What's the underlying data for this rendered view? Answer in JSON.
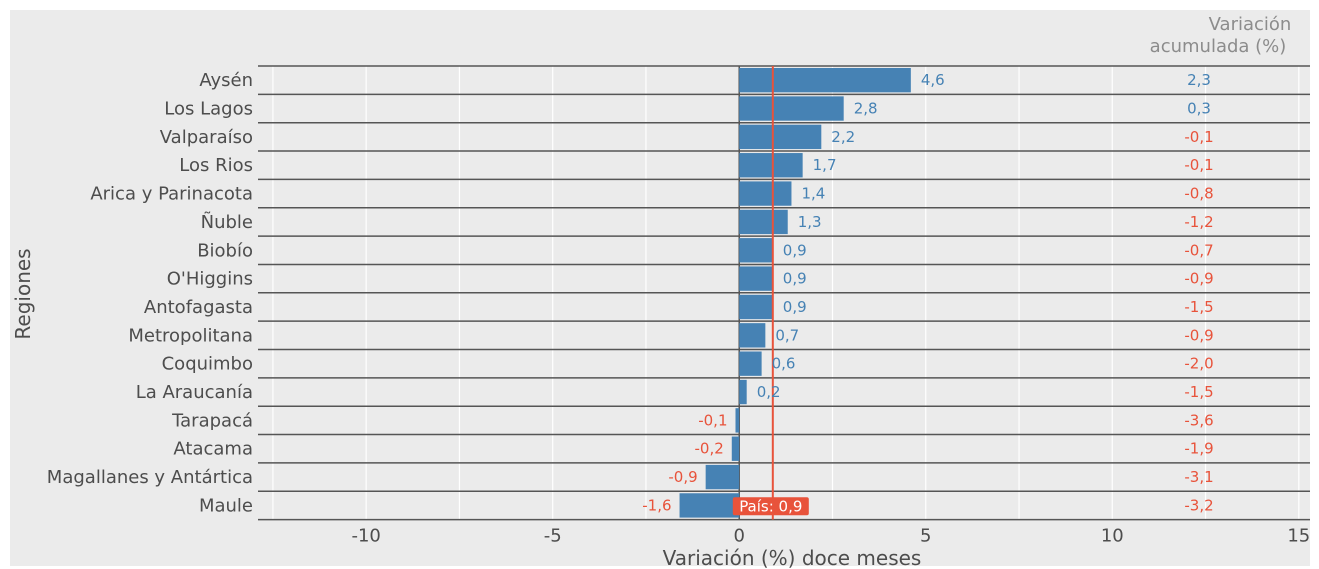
{
  "chart_data": {
    "type": "bar",
    "orientation": "horizontal",
    "xlabel": "Variación (%) doce meses",
    "ylabel": "Regiones",
    "xlim": [
      -12.9,
      15.3
    ],
    "xticks": [
      -10,
      -5,
      0,
      5,
      10,
      15
    ],
    "xtick_labels": [
      "-10",
      "-5",
      "0",
      "5",
      "10",
      "15"
    ],
    "grid": true,
    "categories": [
      "Aysén",
      "Los Lagos",
      "Valparaíso",
      "Los Rios",
      "Arica y Parinacota",
      "Ñuble",
      "Biobío",
      "O'Higgins",
      "Antofagasta",
      "Metropolitana",
      "Coquimbo",
      "La Araucanía",
      "Tarapacá",
      "Atacama",
      "Magallanes y Antártica",
      "Maule"
    ],
    "values": [
      4.6,
      2.8,
      2.2,
      1.7,
      1.4,
      1.3,
      0.9,
      0.9,
      0.9,
      0.7,
      0.6,
      0.2,
      -0.1,
      -0.2,
      -0.9,
      -1.6
    ],
    "value_labels": [
      "4,6",
      "2,8",
      "2,2",
      "1,7",
      "1,4",
      "1,3",
      "0,9",
      "0,9",
      "0,9",
      "0,7",
      "0,6",
      "0,2",
      "-0,1",
      "-0,2",
      "-0,9",
      "-1,6"
    ],
    "reference_line": {
      "value": 0.9,
      "label": "País: 0,9"
    },
    "secondary_column": {
      "title": [
        "Variación",
        "acumulada (%)"
      ],
      "values": [
        2.3,
        0.3,
        -0.1,
        -0.1,
        -0.8,
        -1.2,
        -0.7,
        -0.9,
        -1.5,
        -0.9,
        -2.0,
        -1.5,
        -3.6,
        -1.9,
        -3.1,
        -3.2
      ],
      "labels": [
        "2,3",
        "0,3",
        "-0,1",
        "-0,1",
        "-0,8",
        "-1,2",
        "-0,7",
        "-0,9",
        "-1,5",
        "-0,9",
        "-2,0",
        "-1,5",
        "-3,6",
        "-1,9",
        "-3,1",
        "-3,2"
      ]
    },
    "colors": {
      "bar": "#4682b4",
      "positive_label": "#4682b4",
      "negative_label": "#e8533b",
      "reference": "#e8533b",
      "background": "#ebebeb",
      "text": "#4d4d4d",
      "header": "#8c8c8c"
    }
  }
}
